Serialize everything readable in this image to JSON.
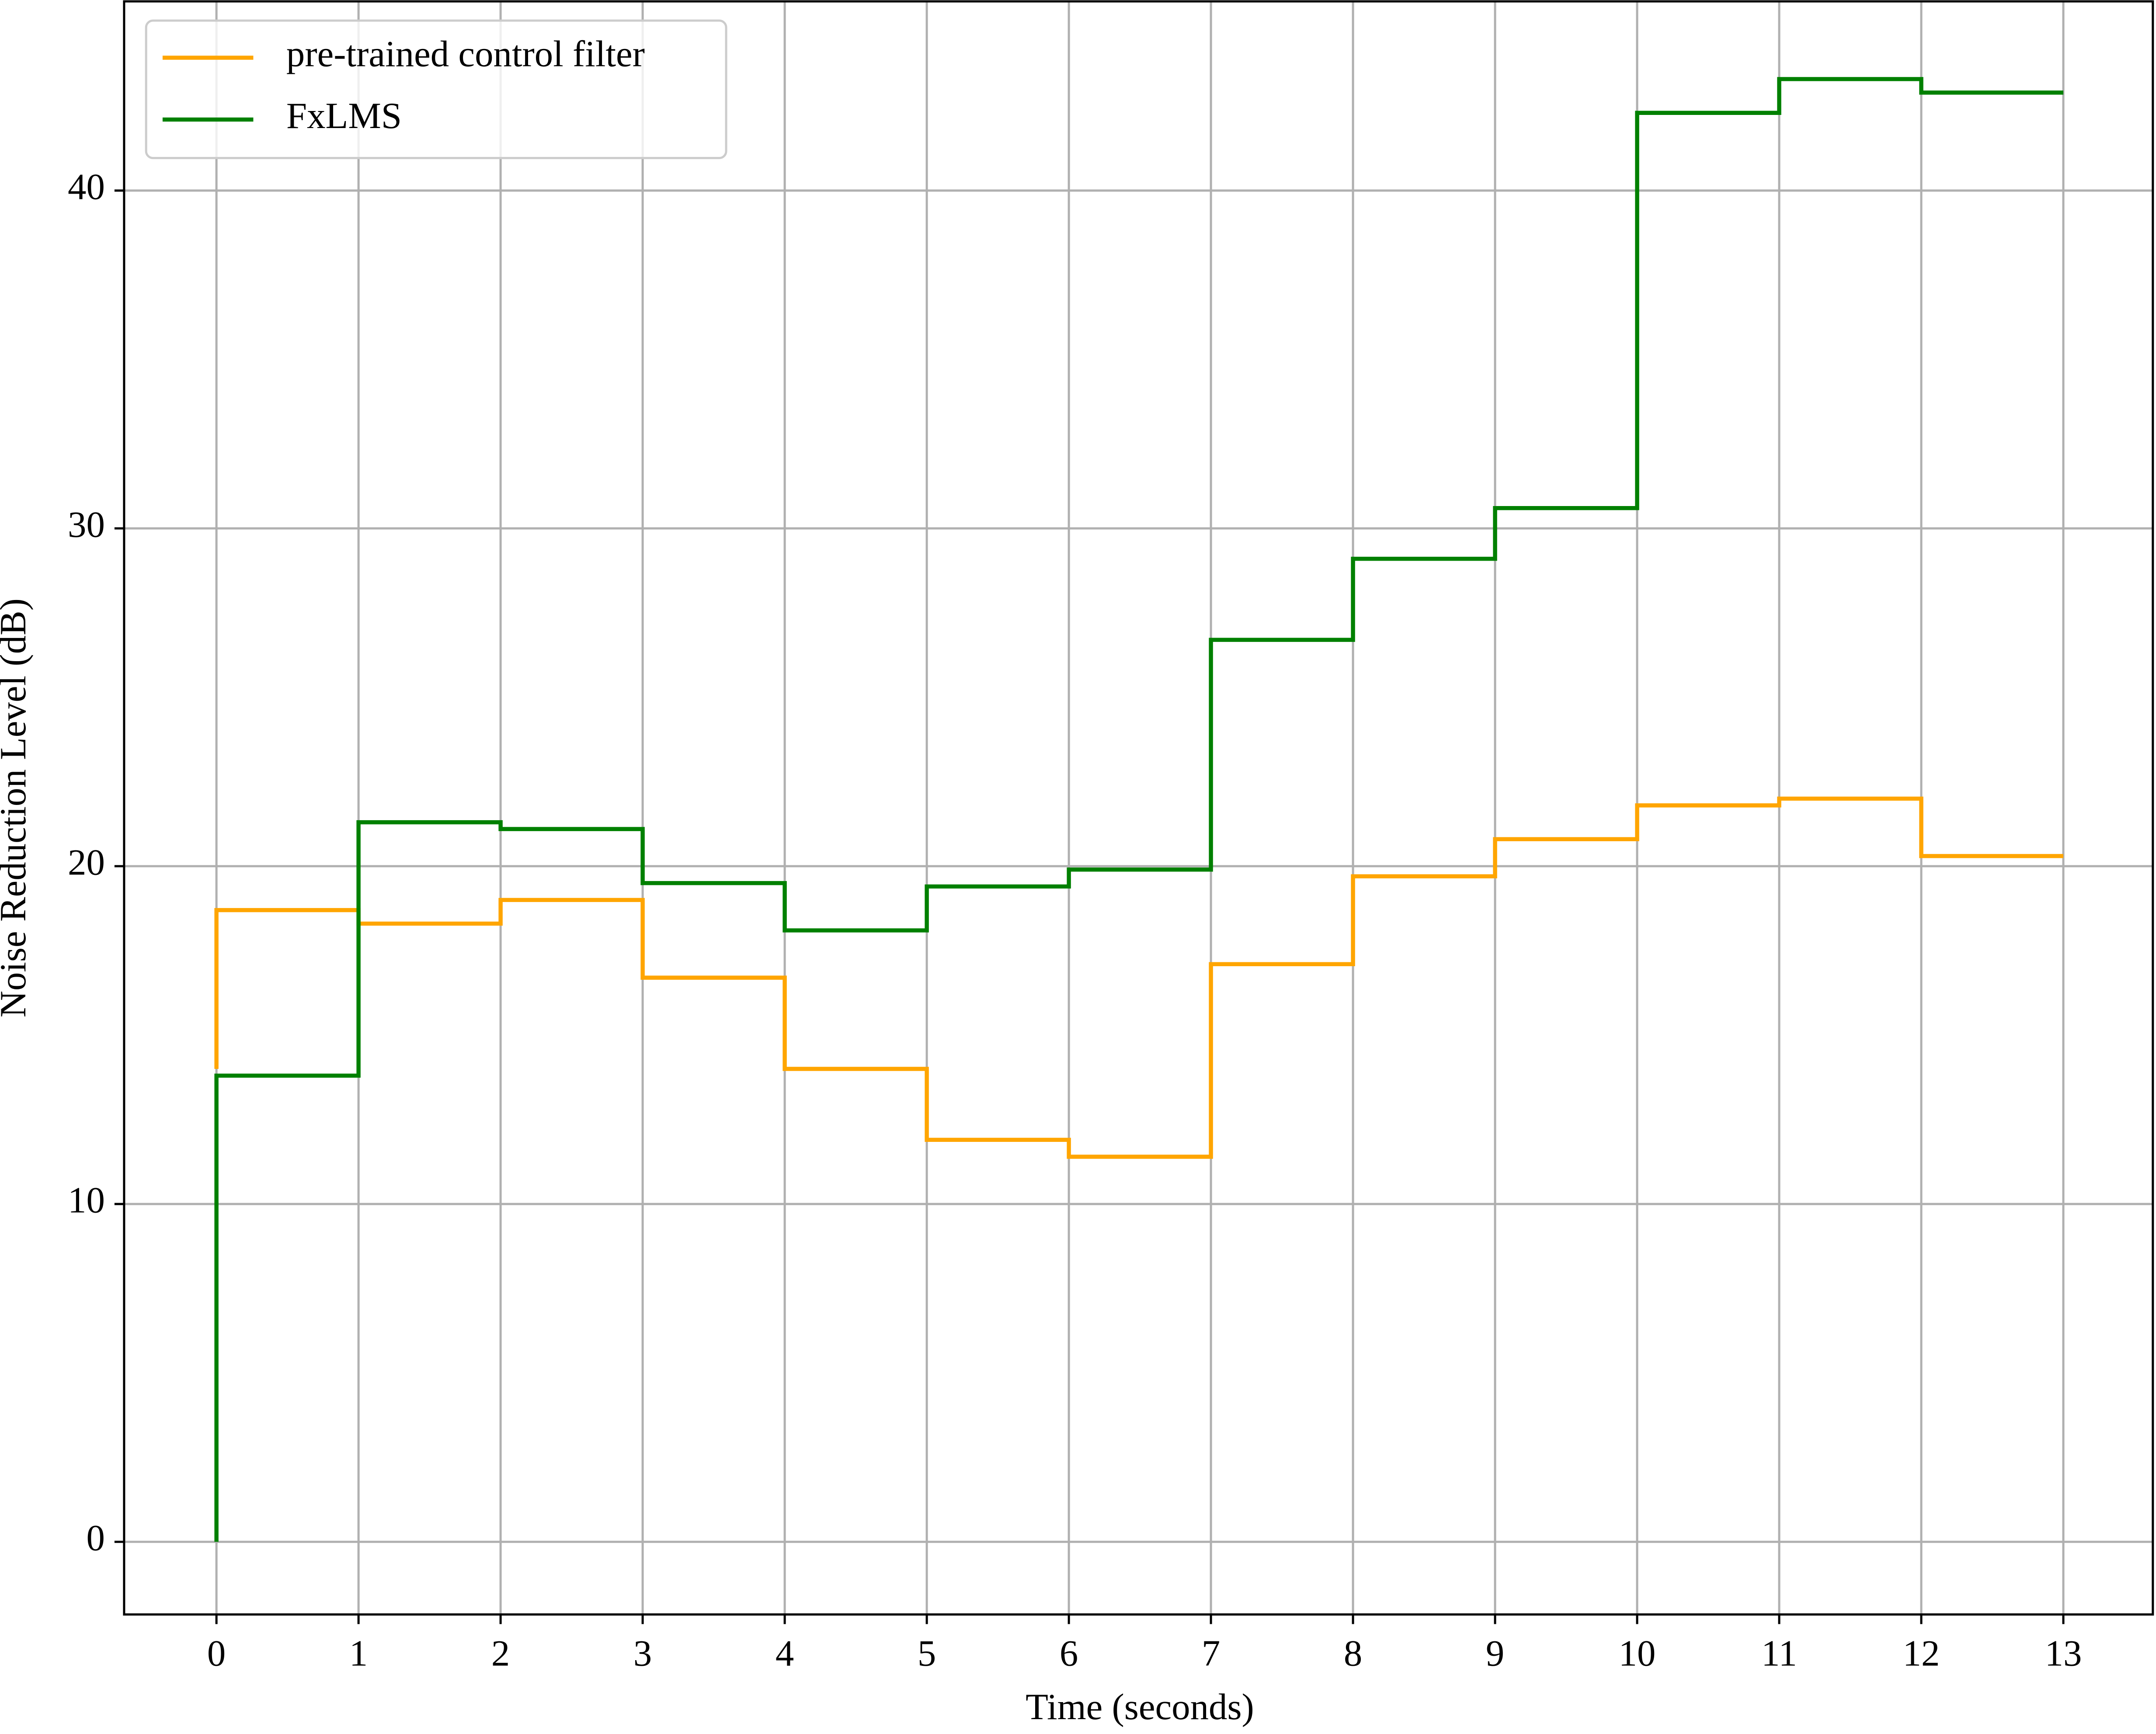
{
  "chart_data": {
    "type": "line",
    "drawstyle": "steps-pre",
    "xlabel": "Time (seconds)",
    "ylabel": "Noise Reduction Level (dB)",
    "x": [
      0,
      1,
      2,
      3,
      4,
      5,
      6,
      7,
      8,
      9,
      10,
      11,
      12,
      13
    ],
    "series": [
      {
        "name": "pre-trained control filter",
        "color": "#ffa500",
        "values": [
          14,
          18.7,
          18.3,
          19.0,
          16.7,
          14.0,
          11.9,
          11.4,
          17.1,
          19.7,
          20.8,
          21.8,
          22.0,
          20.3
        ]
      },
      {
        "name": "FxLMS",
        "color": "#008000",
        "values": [
          0,
          13.8,
          21.3,
          21.1,
          19.5,
          18.1,
          19.4,
          19.9,
          26.7,
          29.1,
          30.6,
          42.3,
          43.3,
          42.9
        ]
      }
    ],
    "xlim": [
      -0.65,
      13.63
    ],
    "ylim": [
      -2.15,
      45.6
    ],
    "xticks": [
      0,
      1,
      2,
      3,
      4,
      5,
      6,
      7,
      8,
      9,
      10,
      11,
      12,
      13
    ],
    "yticks": [
      0,
      10,
      20,
      30,
      40
    ],
    "grid": true,
    "legend": "upper left"
  }
}
